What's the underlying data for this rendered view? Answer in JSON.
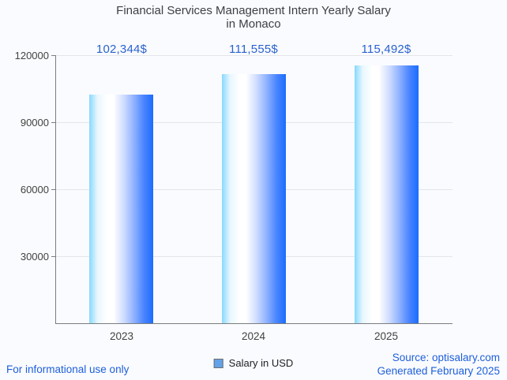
{
  "chart_data": {
    "type": "bar",
    "title": "Financial Services Management Intern Yearly Salary in Monaco",
    "title_lines": [
      "Financial Services Management Intern Yearly Salary",
      "in Monaco"
    ],
    "categories": [
      "2023",
      "2024",
      "2025"
    ],
    "values": [
      102344,
      111555,
      115492
    ],
    "annotations": [
      "102,344$",
      "111,555$",
      "115,492$"
    ],
    "series": [
      {
        "name": "Salary in USD",
        "values": [
          102344,
          111555,
          115492
        ]
      }
    ],
    "xlabel": "",
    "ylabel": "",
    "ylim": [
      0,
      120000
    ],
    "yticks": [
      30000,
      60000,
      90000,
      120000
    ],
    "ytick_labels_top_to_bottom": [
      "120000",
      "90000",
      "60000",
      "30000"
    ],
    "grid": true,
    "legend_position": "bottom",
    "bar_gradient_stops": [
      "#87d9fd 0%",
      "#e9f7fe 13%",
      "#ffffff 28%",
      "#ffffff 38%",
      "#ccdaff 55%",
      "#8fb2ff 70%",
      "#4c86ff 85%",
      "#1b6cff 100%"
    ]
  },
  "legend": {
    "label": "Salary in USD",
    "swatch_color": "#63a2e8"
  },
  "footer": {
    "left": "For informational use only",
    "source": "Source: optisalary.com",
    "generated": "Generated February 2025"
  },
  "colors": {
    "background": "#fafbfe",
    "title_text": "#3c4043",
    "axis_label": "#424242",
    "annotation_blue": "#2a62cf",
    "footer_blue": "#1d5fdb",
    "gridline": "#e3e5e9",
    "axis_line": "#7a7d80",
    "legend_text": "#202124",
    "legend_swatch": "#63a2e8",
    "legend_swatch_border": "#6e6e6e",
    "bar_blue_dark": "#1b6cff",
    "bar_blue_light": "#87d9fd"
  }
}
